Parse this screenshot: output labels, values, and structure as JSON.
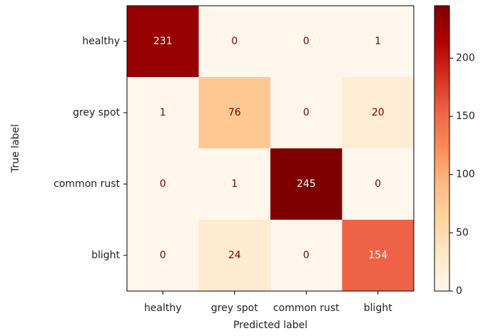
{
  "chart_data": {
    "type": "heatmap",
    "x_categories": [
      "healthy",
      "grey spot",
      "common rust",
      "blight"
    ],
    "y_categories": [
      "healthy",
      "grey spot",
      "common rust",
      "blight"
    ],
    "z": [
      [
        231,
        0,
        0,
        1
      ],
      [
        1,
        76,
        0,
        20
      ],
      [
        0,
        1,
        245,
        0
      ],
      [
        0,
        24,
        0,
        154
      ]
    ],
    "xlabel": "Predicted label",
    "ylabel": "True label",
    "zlim": [
      0,
      245
    ],
    "zticks": [
      0,
      50,
      100,
      150,
      200
    ],
    "colorscale": [
      "#fff7ec",
      "#fee8c8",
      "#fdd49e",
      "#fdbb84",
      "#fc8d59",
      "#ef6548",
      "#d7301f",
      "#b30000",
      "#7f0000"
    ]
  }
}
